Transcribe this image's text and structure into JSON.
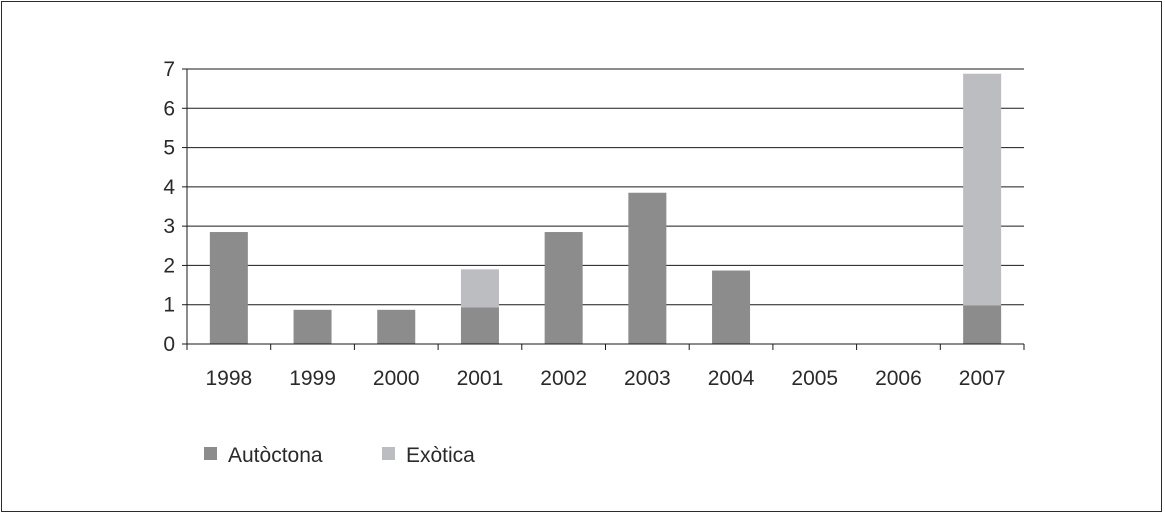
{
  "chart_data": {
    "type": "bar",
    "stacked": true,
    "categories": [
      "1998",
      "1999",
      "2000",
      "2001",
      "2002",
      "2003",
      "2004",
      "2005",
      "2006",
      "2007"
    ],
    "series": [
      {
        "name": "Autòctona",
        "color": "#8c8c8c",
        "values": [
          2.85,
          0.87,
          0.87,
          0.93,
          2.85,
          3.85,
          1.87,
          0,
          0,
          0.98
        ]
      },
      {
        "name": "Exòtica",
        "color": "#bcbdc0",
        "values": [
          0,
          0,
          0,
          0.97,
          0,
          0,
          0,
          0,
          0,
          5.9
        ]
      }
    ],
    "yticks": [
      "0",
      "1",
      "2",
      "3",
      "4",
      "5",
      "6",
      "7"
    ],
    "ylim": [
      0,
      7
    ],
    "grid": true,
    "legend_position": "bottom-left"
  }
}
